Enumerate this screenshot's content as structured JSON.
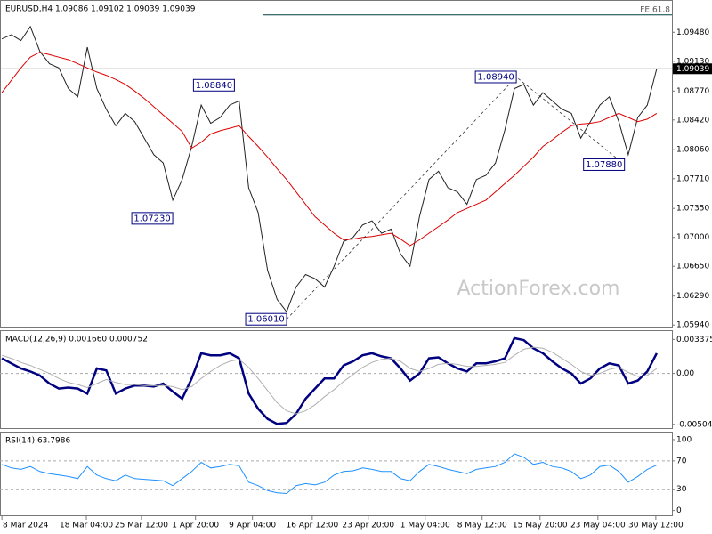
{
  "chart_data": [
    {
      "type": "line",
      "title": "EURUSD,H4 1.09086 1.09102 1.09039 1.09039",
      "watermark": "ActionForex.com",
      "xlim": [
        -0.2,
        70.6
      ],
      "ylim": [
        1.0591,
        1.0986
      ],
      "yticks": [
        {
          "value": 1.0948,
          "label": "1.09480"
        },
        {
          "value": 1.0913,
          "label": "1.09130"
        },
        {
          "value": 1.0877,
          "label": "1.08770"
        },
        {
          "value": 1.0842,
          "label": "1.08420"
        },
        {
          "value": 1.0806,
          "label": "1.08060"
        },
        {
          "value": 1.0771,
          "label": "1.07710"
        },
        {
          "value": 1.0735,
          "label": "1.07350"
        },
        {
          "value": 1.07,
          "label": "1.07000"
        },
        {
          "value": 1.0665,
          "label": "1.06650"
        },
        {
          "value": 1.0629,
          "label": "1.06290"
        },
        {
          "value": 1.0594,
          "label": "1.05940"
        }
      ],
      "xticks": [
        {
          "value": 0,
          "label": "8 Mar 2024"
        },
        {
          "value": 8.9,
          "label": "18 Mar 04:00"
        },
        {
          "value": 14.7,
          "label": "25 Mar 12:00"
        },
        {
          "value": 20.4,
          "label": "1 Apr 20:00"
        },
        {
          "value": 26.4,
          "label": "9 Apr 04:00"
        },
        {
          "value": 32.7,
          "label": "16 Apr 12:00"
        },
        {
          "value": 38.6,
          "label": "23 Apr 20:00"
        },
        {
          "value": 44.6,
          "label": "1 May 04:00"
        },
        {
          "value": 50.6,
          "label": "8 May 12:00"
        },
        {
          "value": 56.7,
          "label": "15 May 20:00"
        },
        {
          "value": 62.8,
          "label": "23 May 04:00"
        },
        {
          "value": 68.9,
          "label": "30 May 12:00"
        }
      ],
      "series": [
        {
          "color": "#222222",
          "values": [
            1.094,
            1.0945,
            1.0938,
            1.0955,
            1.0925,
            1.091,
            1.0905,
            1.088,
            1.087,
            1.093,
            1.088,
            1.0855,
            1.0835,
            1.085,
            1.084,
            1.082,
            1.08,
            1.079,
            1.0745,
            1.077,
            1.081,
            1.086,
            1.0838,
            1.0845,
            1.086,
            1.0865,
            1.076,
            1.073,
            1.066,
            1.0625,
            1.061,
            1.064,
            1.0655,
            1.065,
            1.064,
            1.0665,
            1.0695,
            1.07,
            1.0715,
            1.072,
            1.0705,
            1.071,
            1.068,
            1.0665,
            1.0725,
            1.077,
            1.078,
            1.076,
            1.0755,
            1.074,
            1.077,
            1.0775,
            1.079,
            1.083,
            1.088,
            1.0885,
            1.086,
            1.0875,
            1.0865,
            1.0855,
            1.085,
            1.082,
            1.084,
            1.086,
            1.087,
            1.084,
            1.08,
            1.0845,
            1.086,
            1.0904
          ]
        },
        {
          "color": "#dd0000",
          "values": [
            1.0875,
            1.089,
            1.0905,
            1.0918,
            1.0924,
            1.0921,
            1.0918,
            1.0915,
            1.091,
            1.0905,
            1.09,
            1.0896,
            1.0891,
            1.0885,
            1.0877,
            1.0868,
            1.0858,
            1.0848,
            1.0838,
            1.0828,
            1.0808,
            1.0815,
            1.0825,
            1.0829,
            1.0832,
            1.0835,
            1.0822,
            1.081,
            1.0797,
            1.0783,
            1.077,
            1.0755,
            1.074,
            1.0725,
            1.0715,
            1.0705,
            1.0697,
            1.0698,
            1.07,
            1.0701,
            1.0703,
            1.0705,
            1.0698,
            1.069,
            1.0697,
            1.0705,
            1.0713,
            1.0721,
            1.073,
            1.0735,
            1.074,
            1.0745,
            1.0755,
            1.0765,
            1.0775,
            1.0786,
            1.0797,
            1.081,
            1.0818,
            1.0827,
            1.0835,
            1.0837,
            1.0838,
            1.084,
            1.0845,
            1.085,
            1.0845,
            1.084,
            1.0843,
            1.085
          ]
        }
      ],
      "current_price": {
        "value": 1.09039,
        "label": "1.09039"
      },
      "fe_level": {
        "label": "FE 61.8",
        "value": 1.0969,
        "x_start": 27.5
      },
      "annotations": [
        {
          "label": "1.08840",
          "x": 24.5,
          "y": 1.0884
        },
        {
          "label": "1.07230",
          "x": 18,
          "y": 1.0723
        },
        {
          "label": "1.06010",
          "x": 30,
          "y": 1.0601
        },
        {
          "label": "1.08940",
          "x": 54.2,
          "y": 1.0894
        },
        {
          "label": "1.07880",
          "x": 65.6,
          "y": 1.0788
        }
      ]
    },
    {
      "type": "line",
      "title": "MACD(12,26,9) 0.001660 0.000752",
      "xlim": [
        -0.2,
        70.6
      ],
      "ylim": [
        -0.0055,
        0.0042
      ],
      "yticks": [
        0.003375,
        {
          "value": 0,
          "label": "0.00"
        },
        -0.00504
      ],
      "levels": [
        0
      ],
      "series": [
        {
          "color": "#000080",
          "values": [
            0.0015,
            0.001,
            0.0005,
            0.0002,
            -0.0002,
            -0.001,
            -0.0015,
            -0.0014,
            -0.0015,
            -0.002,
            0.0005,
            0.0003,
            -0.002,
            -0.0015,
            -0.0012,
            -0.0012,
            -0.0013,
            -0.001,
            -0.0018,
            -0.0025,
            -0.0005,
            0.002,
            0.0018,
            0.0018,
            0.002,
            0.0015,
            -0.002,
            -0.0035,
            -0.0045,
            -0.005,
            -0.0049,
            -0.004,
            -0.0025,
            -0.0015,
            -0.0005,
            -0.0005,
            0.0008,
            0.0012,
            0.0018,
            0.002,
            0.0017,
            0.0015,
            0.0005,
            -0.0007,
            0.0,
            0.0015,
            0.0016,
            0.001,
            0.0005,
            0.0002,
            0.001,
            0.001,
            0.0012,
            0.0015,
            0.0035,
            0.0033,
            0.0025,
            0.002,
            0.0012,
            0.0005,
            0.0,
            -0.001,
            -0.0005,
            0.0005,
            0.001,
            0.0008,
            -0.001,
            -0.0007,
            0.0002,
            0.002
          ]
        },
        {
          "color": "#b0b0b0",
          "values": [
            0.0018,
            0.0015,
            0.0011,
            0.0008,
            0.0004,
            0.0,
            -0.0005,
            -0.0009,
            -0.0011,
            -0.0014,
            -0.001,
            -0.0006,
            -0.0009,
            -0.0011,
            -0.0011,
            -0.0012,
            -0.0012,
            -0.0012,
            -0.0013,
            -0.0016,
            -0.0013,
            -0.0005,
            0.0002,
            0.0008,
            0.0012,
            0.0014,
            0.0006,
            -0.0005,
            -0.0017,
            -0.0029,
            -0.0037,
            -0.004,
            -0.0037,
            -0.0031,
            -0.0023,
            -0.0016,
            -0.0008,
            -0.0001,
            0.0006,
            0.0011,
            0.0014,
            0.0015,
            0.0012,
            0.0005,
            0.0002,
            0.0005,
            0.0009,
            0.001,
            0.0009,
            0.0007,
            0.0007,
            0.0008,
            0.0009,
            0.0011,
            0.0018,
            0.0024,
            0.0026,
            0.0025,
            0.0021,
            0.0015,
            0.0009,
            0.0002,
            -0.0002,
            0.0,
            0.0004,
            0.0006,
            0.0001,
            -0.0003,
            -0.0002,
            0.0005
          ]
        }
      ]
    },
    {
      "type": "line",
      "title": "RSI(14) 63.7986",
      "xlim": [
        -0.2,
        70.6
      ],
      "ylim": [
        -8,
        110
      ],
      "yticks": [
        100,
        70,
        30,
        0
      ],
      "levels": [
        70,
        30
      ],
      "series": [
        {
          "color": "#1e90ff",
          "values": [
            65,
            60,
            58,
            62,
            55,
            52,
            50,
            48,
            45,
            62,
            50,
            45,
            42,
            50,
            45,
            44,
            43,
            42,
            35,
            45,
            55,
            68,
            60,
            62,
            65,
            63,
            40,
            35,
            28,
            25,
            24,
            35,
            38,
            36,
            40,
            50,
            55,
            56,
            60,
            58,
            55,
            55,
            45,
            42,
            55,
            65,
            62,
            58,
            55,
            52,
            58,
            60,
            62,
            68,
            80,
            75,
            65,
            68,
            62,
            60,
            55,
            45,
            50,
            62,
            64,
            55,
            40,
            48,
            58,
            64
          ]
        }
      ]
    }
  ]
}
